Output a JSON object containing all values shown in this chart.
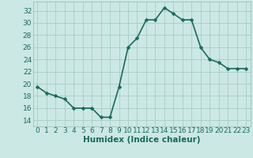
{
  "x": [
    0,
    1,
    2,
    3,
    4,
    5,
    6,
    7,
    8,
    9,
    10,
    11,
    12,
    13,
    14,
    15,
    16,
    17,
    18,
    19,
    20,
    21,
    22,
    23
  ],
  "y": [
    19.5,
    18.5,
    18.0,
    17.5,
    16.0,
    16.0,
    16.0,
    14.5,
    14.5,
    19.5,
    26.0,
    27.5,
    30.5,
    30.5,
    32.5,
    31.5,
    30.5,
    30.5,
    26.0,
    24.0,
    23.5,
    22.5,
    22.5,
    22.5
  ],
  "xlabel": "Humidex (Indice chaleur)",
  "xlim": [
    -0.5,
    23.5
  ],
  "ylim": [
    13.0,
    33.5
  ],
  "yticks": [
    14,
    16,
    18,
    20,
    22,
    24,
    26,
    28,
    30,
    32
  ],
  "xticks": [
    0,
    1,
    2,
    3,
    4,
    5,
    6,
    7,
    8,
    9,
    10,
    11,
    12,
    13,
    14,
    15,
    16,
    17,
    18,
    19,
    20,
    21,
    22,
    23
  ],
  "line_color": "#1a6b5a",
  "marker_color": "#1a6b5a",
  "bg_color": "#cce8e4",
  "grid_color": "#a0c8c0",
  "tick_label_color": "#1a6b5a",
  "xlabel_color": "#1a6b5a",
  "xlabel_fontsize": 7.5,
  "tick_fontsize": 6.5,
  "line_width": 1.2,
  "marker_size": 2.5
}
